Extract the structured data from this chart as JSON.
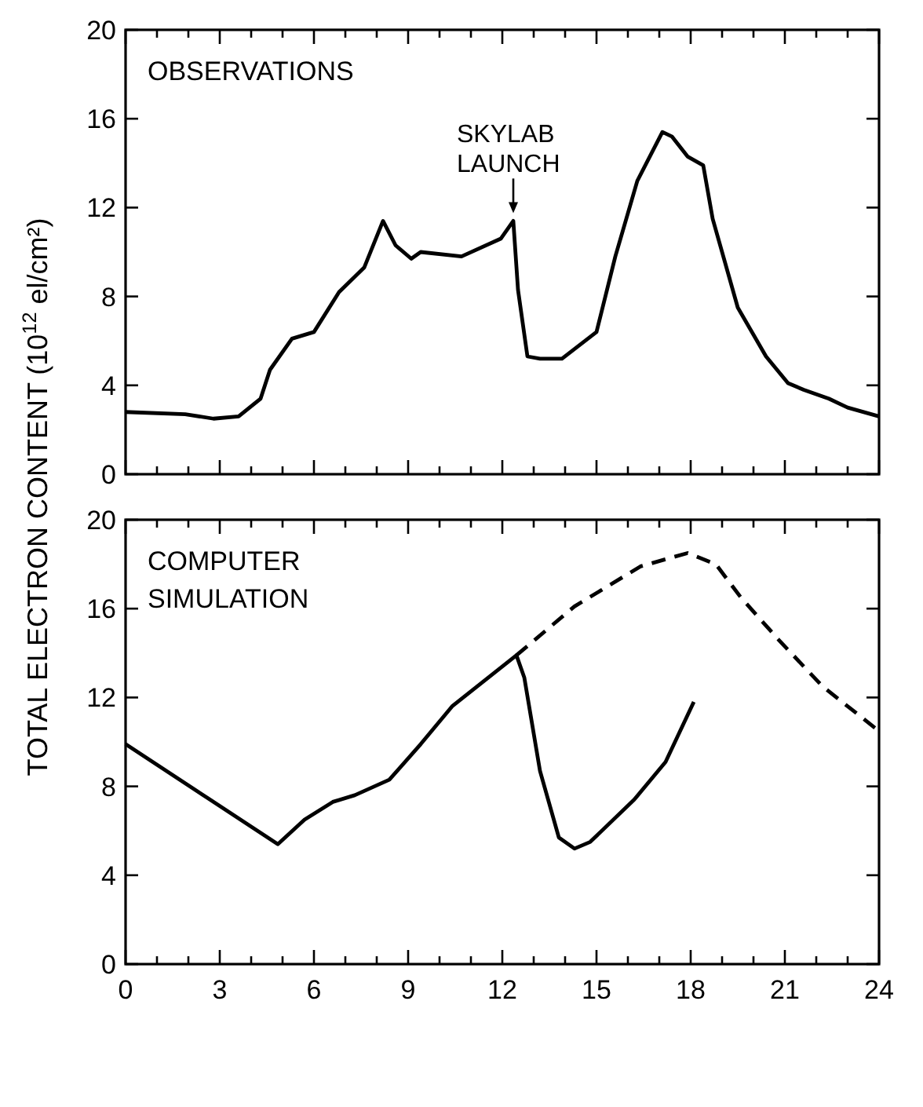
{
  "chart_data": [
    {
      "type": "line",
      "title": "OBSERVATIONS",
      "ylabel": "TOTAL ELECTRON CONTENT (10$^{12}$ el/cm²)",
      "tick_labels": "y",
      "xlim": [
        0,
        24
      ],
      "ylim": [
        0,
        20
      ],
      "xticks": [
        {
          "value": 0,
          "label": null
        },
        {
          "value": 1,
          "label": null
        },
        {
          "value": 2,
          "label": null
        },
        {
          "value": 3,
          "label": null
        },
        {
          "value": 4,
          "label": null
        },
        {
          "value": 5,
          "label": null
        },
        {
          "value": 6,
          "label": null
        },
        {
          "value": 7,
          "label": null
        },
        {
          "value": 8,
          "label": null
        },
        {
          "value": 9,
          "label": null
        },
        {
          "value": 10,
          "label": null
        },
        {
          "value": 11,
          "label": null
        },
        {
          "value": 12,
          "label": null
        },
        {
          "value": 13,
          "label": null
        },
        {
          "value": 14,
          "label": null
        },
        {
          "value": 15,
          "label": null
        },
        {
          "value": 16,
          "label": null
        },
        {
          "value": 17,
          "label": null
        },
        {
          "value": 18,
          "label": null
        },
        {
          "value": 19,
          "label": null
        },
        {
          "value": 20,
          "label": null
        },
        {
          "value": 21,
          "label": null
        },
        {
          "value": 22,
          "label": null
        },
        {
          "value": 23,
          "label": null
        },
        {
          "value": 24,
          "label": null
        }
      ],
      "yticks": [
        0,
        4,
        8,
        12,
        16,
        20
      ],
      "annotations": [
        {
          "text": "SKYLAB LAUNCH",
          "x": 12.35,
          "y": 11.4
        }
      ],
      "series": [
        {
          "color": "#000000",
          "line_style": "solid",
          "x": [
            0,
            1.9,
            2.8,
            3.6,
            4.3,
            4.6,
            5.3,
            6.0,
            6.8,
            7.6,
            8.2,
            8.6,
            9.1,
            9.4,
            10.7,
            11.95,
            12.35,
            12.5,
            12.8,
            13.2,
            13.9,
            15.0,
            15.6,
            16.3,
            17.1,
            17.4,
            17.9,
            18.4,
            18.7,
            19.5,
            20.4,
            21.1,
            21.6,
            22.4,
            23.0,
            24
          ],
          "values": [
            2.8,
            2.7,
            2.5,
            2.6,
            3.4,
            4.7,
            6.1,
            6.4,
            8.2,
            9.3,
            11.4,
            10.3,
            9.7,
            10.0,
            9.8,
            10.6,
            11.4,
            8.3,
            5.3,
            5.2,
            5.2,
            6.4,
            9.8,
            13.2,
            15.4,
            15.2,
            14.3,
            13.9,
            11.5,
            7.5,
            5.3,
            4.1,
            3.8,
            3.4,
            3.0,
            2.6
          ]
        }
      ]
    },
    {
      "type": "line",
      "title": "COMPUTER SIMULATION",
      "xlim": [
        0,
        24
      ],
      "ylim": [
        0,
        20
      ],
      "xticks": [
        0,
        {
          "value": 1,
          "label": null
        },
        {
          "value": 2,
          "label": null
        },
        3,
        {
          "value": 4,
          "label": null
        },
        {
          "value": 5,
          "label": null
        },
        6,
        {
          "value": 7,
          "label": null
        },
        {
          "value": 8,
          "label": null
        },
        9,
        {
          "value": 10,
          "label": null
        },
        {
          "value": 11,
          "label": null
        },
        12,
        {
          "value": 13,
          "label": null
        },
        {
          "value": 14,
          "label": null
        },
        15,
        {
          "value": 16,
          "label": null
        },
        {
          "value": 17,
          "label": null
        },
        18,
        {
          "value": 19,
          "label": null
        },
        {
          "value": 20,
          "label": null
        },
        21,
        {
          "value": 22,
          "label": null
        },
        {
          "value": 23,
          "label": null
        },
        24
      ],
      "yticks": [
        0,
        4,
        8,
        12,
        16,
        20
      ],
      "series": [
        {
          "color": "#000000",
          "line_style": "solid",
          "x": [
            0,
            4.85,
            5.7,
            6.6,
            7.3,
            8.4,
            9.4,
            10.4,
            12.45,
            12.7,
            13.2,
            13.8,
            14.3,
            14.8,
            16.2,
            17.2,
            18.1
          ],
          "values": [
            9.9,
            5.4,
            6.5,
            7.3,
            7.6,
            8.3,
            9.9,
            11.6,
            13.9,
            12.9,
            8.7,
            5.7,
            5.2,
            5.5,
            7.4,
            9.1,
            11.8
          ]
        },
        {
          "color": "#000000",
          "line_style": "dashed",
          "x": [
            12.45,
            14.3,
            16.4,
            17.9,
            18.8,
            19.6,
            20.8,
            22.2,
            23.9
          ],
          "values": [
            13.9,
            16.1,
            17.9,
            18.5,
            18.0,
            16.5,
            14.6,
            12.5,
            10.6
          ]
        }
      ]
    }
  ]
}
